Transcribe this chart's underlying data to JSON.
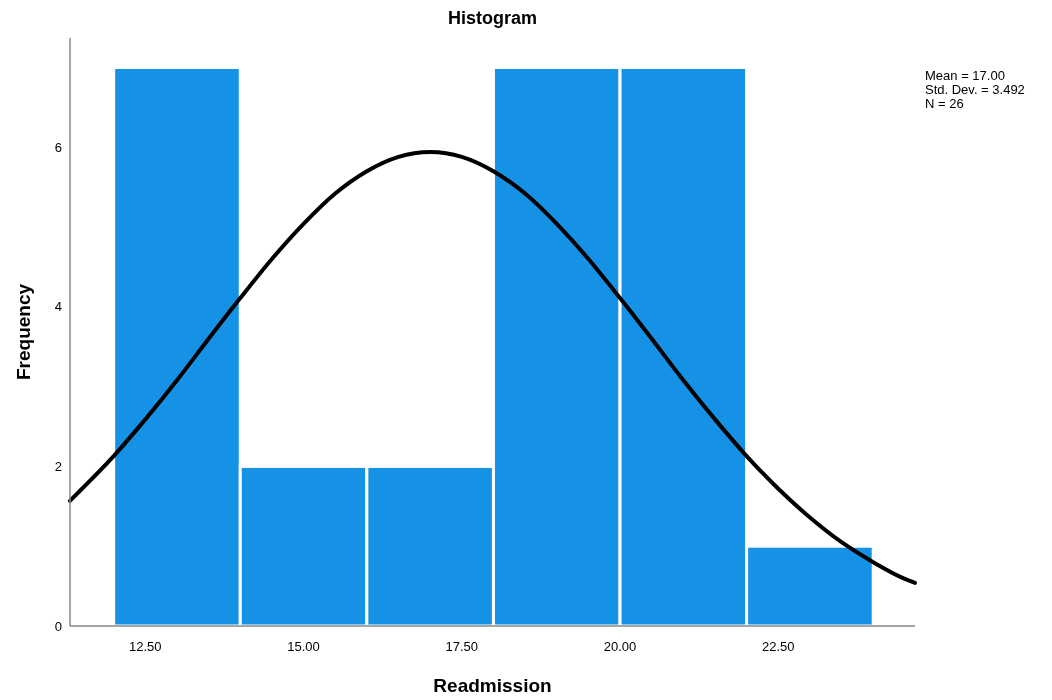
{
  "chart_data": {
    "type": "histogram",
    "title": "Histogram",
    "xlabel": "Readmission",
    "ylabel": "Frequency",
    "bins": [
      12,
      14,
      16,
      18,
      20,
      22,
      24
    ],
    "values": [
      7,
      2,
      2,
      7,
      7,
      1
    ],
    "color": "#1591e5",
    "series": [
      {
        "type": "line",
        "color": "#000000",
        "x": [
          11.31,
          11.5,
          12,
          12.5,
          13,
          13.5,
          14,
          14.5,
          15,
          15.5,
          16,
          16.5,
          17,
          17.5,
          18,
          18.5,
          19,
          19.5,
          20,
          20.5,
          21,
          21.5,
          22,
          22.5,
          23,
          23.5,
          24,
          24.5,
          24.66
        ],
        "values": [
          1.57,
          1.72,
          2.13,
          2.59,
          3.08,
          3.6,
          4.11,
          4.6,
          5.04,
          5.42,
          5.7,
          5.88,
          5.94,
          5.88,
          5.7,
          5.42,
          5.04,
          4.6,
          4.11,
          3.6,
          3.08,
          2.59,
          2.13,
          1.72,
          1.36,
          1.05,
          0.8,
          0.59,
          0.54
        ]
      }
    ],
    "xlim": [
      11.31,
      24.66
    ],
    "xticks": [
      {
        "value": 12.5,
        "label": "12.50"
      },
      {
        "value": 15,
        "label": "15.00"
      },
      {
        "value": 17.5,
        "label": "17.50"
      },
      {
        "value": 20,
        "label": "20.00"
      },
      {
        "value": 22.5,
        "label": "22.50"
      }
    ],
    "ylim": [
      0,
      7.37
    ],
    "yticks": [
      0,
      2,
      4,
      6
    ],
    "grid": false,
    "annotations": [
      "Mean = 17.00",
      "Std. Dev. = 3.492",
      "N = 26"
    ]
  }
}
